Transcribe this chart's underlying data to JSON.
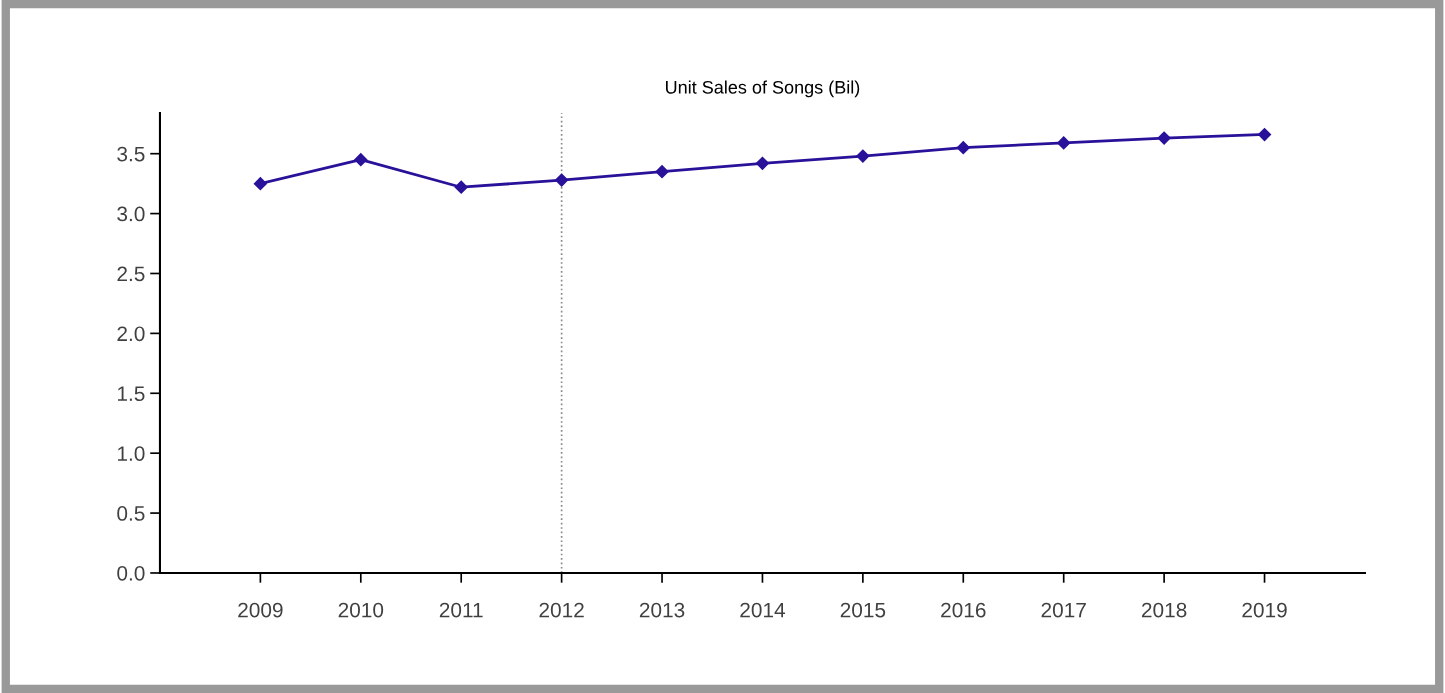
{
  "chart_data": {
    "type": "line",
    "title": "Unit Sales of Songs (Bil)",
    "categories": [
      "2009",
      "2010",
      "2011",
      "2012",
      "2013",
      "2014",
      "2015",
      "2016",
      "2017",
      "2018",
      "2019"
    ],
    "series": [
      {
        "color": "#2a1199",
        "values": [
          3.25,
          3.45,
          3.22,
          3.28,
          3.35,
          3.42,
          3.48,
          3.55,
          3.59,
          3.63,
          3.66
        ]
      }
    ],
    "ylim": [
      0,
      3.84
    ],
    "yticks": [
      {
        "value": 0,
        "label": "0.0"
      },
      {
        "value": 0.5,
        "label": "0.5"
      },
      {
        "value": 1,
        "label": "1.0"
      },
      {
        "value": 1.5,
        "label": "1.5"
      },
      {
        "value": 2,
        "label": "2.0"
      },
      {
        "value": 2.5,
        "label": "2.5"
      },
      {
        "value": 3,
        "label": "3.0"
      },
      {
        "value": 3.5,
        "label": "3.5"
      }
    ],
    "ref_lines": [
      {
        "axis": "x",
        "value": "2012",
        "color": "#888888",
        "line_style": "dotted"
      }
    ],
    "marker": "diamond",
    "line_style": "solid",
    "grid": false,
    "legend": false
  }
}
